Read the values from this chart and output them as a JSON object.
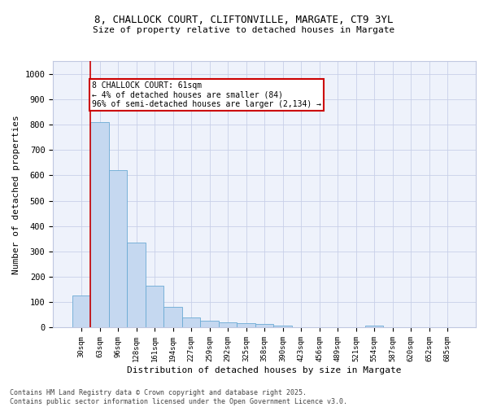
{
  "title_line1": "8, CHALLOCK COURT, CLIFTONVILLE, MARGATE, CT9 3YL",
  "title_line2": "Size of property relative to detached houses in Margate",
  "xlabel": "Distribution of detached houses by size in Margate",
  "ylabel": "Number of detached properties",
  "bar_color": "#c5d8f0",
  "bar_edge_color": "#6aaad4",
  "background_color": "#eef2fb",
  "grid_color": "#c8d0e8",
  "annotation_box_color": "#cc0000",
  "annotation_text": "8 CHALLOCK COURT: 61sqm\n← 4% of detached houses are smaller (84)\n96% of semi-detached houses are larger (2,134) →",
  "vline_x": 0.5,
  "vline_color": "#cc0000",
  "categories": [
    "30sqm",
    "63sqm",
    "96sqm",
    "128sqm",
    "161sqm",
    "194sqm",
    "227sqm",
    "259sqm",
    "292sqm",
    "325sqm",
    "358sqm",
    "390sqm",
    "423sqm",
    "456sqm",
    "489sqm",
    "521sqm",
    "554sqm",
    "587sqm",
    "620sqm",
    "652sqm",
    "685sqm"
  ],
  "values": [
    125,
    810,
    620,
    335,
    165,
    82,
    40,
    27,
    22,
    18,
    14,
    8,
    0,
    0,
    0,
    0,
    8,
    0,
    0,
    0,
    0
  ],
  "ylim": [
    0,
    1050
  ],
  "yticks": [
    0,
    100,
    200,
    300,
    400,
    500,
    600,
    700,
    800,
    900,
    1000
  ],
  "footer_line1": "Contains HM Land Registry data © Crown copyright and database right 2025.",
  "footer_line2": "Contains public sector information licensed under the Open Government Licence v3.0."
}
